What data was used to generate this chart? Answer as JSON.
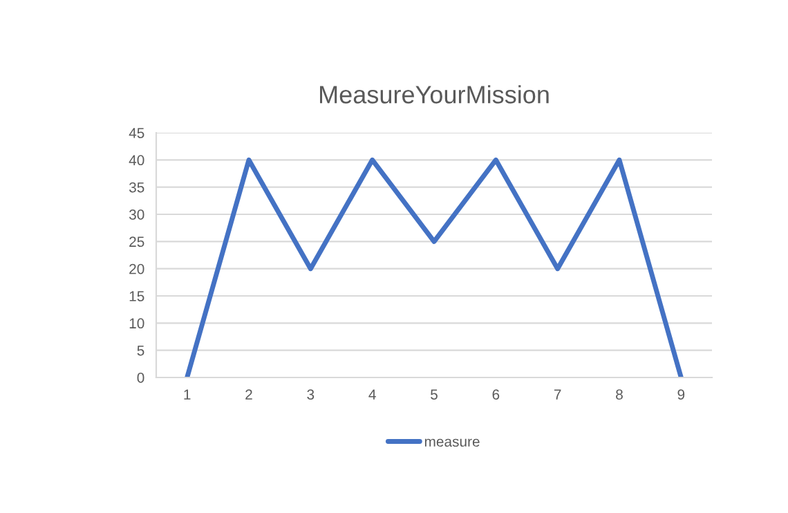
{
  "chart_data": {
    "type": "line",
    "title": "MeasureYourMission",
    "categories": [
      "1",
      "2",
      "3",
      "4",
      "5",
      "6",
      "7",
      "8",
      "9"
    ],
    "series": [
      {
        "name": "measure",
        "color": "#4472c4",
        "values": [
          0,
          40,
          20,
          40,
          25,
          40,
          20,
          40,
          0
        ]
      }
    ],
    "ylim": [
      0,
      45
    ],
    "yticks": [
      0,
      5,
      10,
      15,
      20,
      25,
      30,
      35,
      40,
      45
    ],
    "grid": "y",
    "legend": "bottom",
    "marker": "none",
    "line_style": "solid"
  }
}
